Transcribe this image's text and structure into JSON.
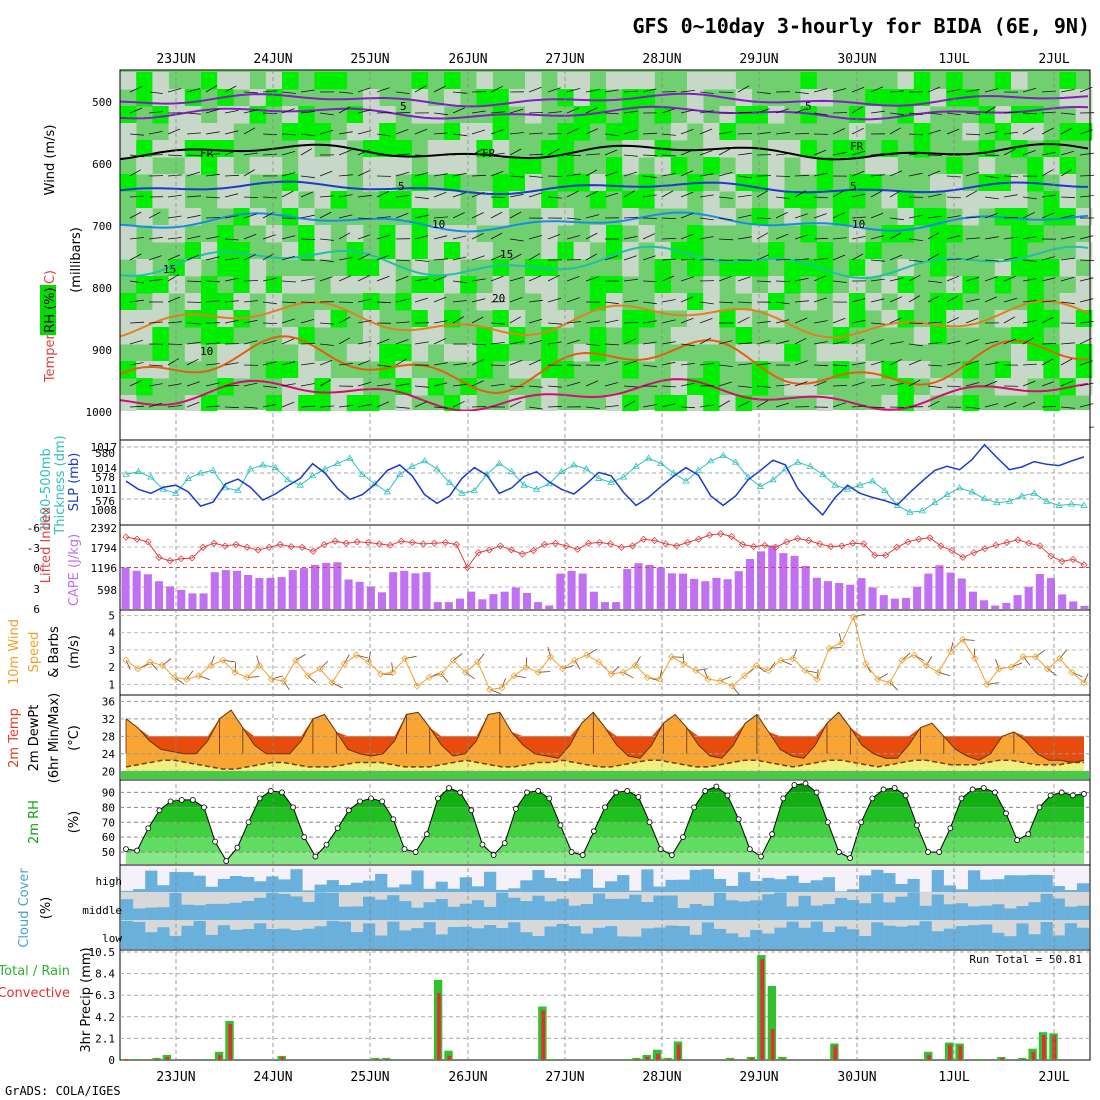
{
  "title": "GFS 0~10day 3-hourly for BIDA (6E, 9N)",
  "footer": "GrADS: COLA/IGES",
  "dates": [
    "23JUN",
    "24JUN",
    "25JUN",
    "26JUN",
    "27JUN",
    "28JUN",
    "29JUN",
    "30JUN",
    "1JUL",
    "2JUL"
  ],
  "colors": {
    "rh_light": "#c8d8c8",
    "rh_mid": "#70d070",
    "rh_bright": "#00ee00",
    "thickness": "#30c0c0",
    "slp": "#1a3cc8",
    "lifted": "#e04040",
    "cape": "#c070f0",
    "wind": "#f0a030",
    "temp_hot": "#e84c0c",
    "temp_warm": "#f9a534",
    "dew": "#f0f080",
    "rh2m": "#10b010",
    "cloud": "#6ab0dc",
    "cloud_bg": "#d8d8d8",
    "precip": "#30c030",
    "conv": "#e03030"
  },
  "panels": {
    "upper": {
      "y_label_rh": "RH (%)",
      "y_label_temp": "Temperature (°C)",
      "y_label_wind": "Wind (m/s)",
      "y_label_mb": "(millibars)",
      "levels": [
        "500",
        "600",
        "700",
        "800",
        "900",
        "1000"
      ],
      "contour_labels": [
        "5",
        "5",
        "FR",
        "FR",
        "FR",
        "5",
        "5",
        "10",
        "10",
        "15",
        "15",
        "20",
        "10"
      ]
    },
    "slp": {
      "label_a": "1000-500mb",
      "label_b": "Thickness (dm)",
      "label_c": "SLP (mb)",
      "left_ticks": [
        "580",
        "578",
        "576"
      ],
      "right_ticks": [
        "1017",
        "1014",
        "1011",
        "1008"
      ]
    },
    "cape": {
      "label_a": "Lifted Index",
      "label_b": "CAPE (J/kg)",
      "left_ticks": [
        "-3",
        "0",
        "3",
        "6",
        "-6"
      ],
      "right_ticks": [
        "2392",
        "1794",
        "1196",
        "598"
      ]
    },
    "wind": {
      "label_a": "10m Wind",
      "label_b": "Speed",
      "label_c": "& Barbs",
      "label_d": "(m/s)",
      "ticks": [
        "5",
        "4",
        "3",
        "2",
        "1"
      ]
    },
    "temp": {
      "label_a": "2m Temp",
      "label_b": "2m DewPt",
      "label_c": "(6hr Min/Max)",
      "label_d": "(°C)",
      "ticks": [
        "36",
        "32",
        "28",
        "24",
        "20"
      ]
    },
    "rh": {
      "label_a": "2m RH",
      "label_b": "(%)",
      "ticks": [
        "90",
        "80",
        "70",
        "60",
        "50"
      ]
    },
    "cloud": {
      "label_a": "Cloud Cover",
      "label_b": "(%)",
      "levels": [
        "high",
        "middle",
        "low"
      ]
    },
    "precip": {
      "label_a": "Total / Rain",
      "label_b": "Convective",
      "label_c": "3hr Precip (mm)",
      "ticks": [
        "10.5",
        "8.4",
        "6.3",
        "4.2",
        "2.1",
        "0"
      ],
      "run_total": "Run Total = 50.81"
    }
  },
  "chart_data": [
    {
      "type": "line",
      "title": "1000-500mb Thickness (dm) / SLP (mb)",
      "x_unit": "3-hourly steps from 22JUN 12Z",
      "series": [
        {
          "name": "1000-500mb Thickness (dm)",
          "y_axis": "left",
          "ylim": [
            575,
            581
          ],
          "values": [
            578.6,
            578.8,
            578.4,
            577.5,
            577.2,
            578.3,
            578.7,
            578.9,
            577.6,
            577.4,
            579.0,
            579.3,
            579.1,
            578.2,
            577.8,
            578.5,
            579.0,
            579.4,
            579.8,
            578.6,
            577.9,
            577.3,
            578.6,
            579.2,
            579.6,
            579.0,
            578.0,
            577.2,
            577.4,
            578.6,
            579.4,
            578.8,
            577.8,
            577.5,
            577.9,
            578.8,
            579.3,
            579.0,
            578.3,
            578.0,
            578.4,
            579.2,
            579.8,
            579.4,
            578.7,
            578.1,
            578.9,
            579.6,
            580.0,
            579.5,
            578.4,
            577.7,
            578.2,
            579.0,
            579.5,
            579.2,
            578.6,
            577.8,
            577.5,
            577.8,
            578.1,
            577.4,
            576.3,
            575.8,
            575.9,
            576.5,
            577.1,
            577.6,
            577.3,
            576.8,
            576.5,
            576.6,
            577.0,
            577.2,
            576.6,
            576.3,
            576.4,
            576.3
          ]
        },
        {
          "name": "SLP (mb)",
          "y_axis": "right",
          "ylim": [
            1007,
            1019
          ],
          "values": [
            1013.2,
            1012.0,
            1011.4,
            1012.3,
            1012.6,
            1011.6,
            1009.5,
            1010.1,
            1012.8,
            1013.5,
            1012.3,
            1010.4,
            1011.3,
            1012.5,
            1013.6,
            1015.8,
            1014.4,
            1012.1,
            1010.5,
            1011.2,
            1012.7,
            1014.8,
            1015.6,
            1014.0,
            1011.2,
            1009.9,
            1011.0,
            1013.6,
            1015.2,
            1014.1,
            1011.4,
            1012.2,
            1013.9,
            1014.6,
            1013.1,
            1012.0,
            1011.3,
            1012.8,
            1014.5,
            1014.0,
            1011.5,
            1009.6,
            1010.8,
            1012.4,
            1013.9,
            1015.2,
            1014.1,
            1011.0,
            1009.6,
            1011.0,
            1013.4,
            1014.8,
            1016.3,
            1015.6,
            1012.1,
            1010.0,
            1008.2,
            1010.8,
            1012.6,
            1011.4,
            1010.8,
            1010.3,
            1009.7,
            1011.5,
            1013.2,
            1014.8,
            1015.4,
            1014.9,
            1016.4,
            1018.6,
            1016.7,
            1014.9,
            1015.3,
            1016.1,
            1015.7,
            1015.5,
            1016.2,
            1016.8
          ]
        }
      ]
    },
    {
      "type": "bar",
      "title": "Lifted Index / CAPE (J/kg)",
      "series": [
        {
          "name": "CAPE (J/kg)",
          "ylim": [
            0,
            2392
          ],
          "values": [
            1200,
            1100,
            1000,
            800,
            650,
            550,
            450,
            450,
            1060,
            1120,
            1100,
            980,
            890,
            900,
            920,
            1120,
            1180,
            1270,
            1330,
            1350,
            850,
            780,
            650,
            480,
            1060,
            1100,
            1030,
            1060,
            200,
            200,
            300,
            500,
            280,
            430,
            500,
            620,
            460,
            200,
            100,
            1020,
            1100,
            1020,
            500,
            200,
            200,
            1150,
            1320,
            1270,
            1200,
            1030,
            1020,
            870,
            800,
            900,
            860,
            1090,
            1440,
            1660,
            1830,
            1610,
            1530,
            1240,
            900,
            800,
            750,
            700,
            890,
            620,
            400,
            300,
            320,
            640,
            1020,
            1260,
            1050,
            880,
            500,
            250,
            100,
            180,
            400,
            640,
            1010,
            890,
            420,
            220,
            90
          ]
        },
        {
          "name": "Lifted Index",
          "type": "line",
          "ylim": [
            6,
            -6
          ],
          "values": [
            -4.5,
            -4.2,
            -3.8,
            -1.5,
            -1.0,
            -1.3,
            -1.4,
            -3.0,
            -3.6,
            -3.2,
            -3.4,
            -3.0,
            -2.6,
            -3.0,
            -3.4,
            -3.1,
            -3.0,
            -2.4,
            -3.4,
            -3.9,
            -3.6,
            -3.8,
            -3.7,
            -3.5,
            -3.3,
            -3.9,
            -3.7,
            -3.5,
            -3.6,
            -3.7,
            -3.4,
            0.0,
            -2.2,
            -2.6,
            -3.2,
            -2.6,
            -2.0,
            -2.5,
            -3.4,
            -3.6,
            -3.2,
            -2.7,
            -3.6,
            -3.7,
            -3.5,
            -3.0,
            -3.2,
            -4.2,
            -4.0,
            -3.5,
            -3.2,
            -3.7,
            -4.2,
            -4.8,
            -5.0,
            -4.6,
            -3.4,
            -3.1,
            -3.3,
            -3.0,
            -3.8,
            -4.3,
            -4.0,
            -3.5,
            -3.1,
            -3.2,
            -3.6,
            -3.5,
            -1.8,
            -1.8,
            -3.0,
            -3.8,
            -4.2,
            -4.4,
            -3.2,
            -2.5,
            -1.5,
            -2.2,
            -2.8,
            -3.3,
            -3.7,
            -4.1,
            -3.6,
            -3.2,
            -1.7,
            -0.9,
            -1.2,
            -0.4
          ]
        }
      ]
    },
    {
      "type": "line",
      "title": "10m Wind Speed (m/s)",
      "ylim": [
        0.5,
        5.2
      ],
      "values": [
        2.4,
        1.9,
        2.3,
        2.1,
        1.4,
        1.3,
        1.5,
        2.1,
        2.4,
        1.7,
        1.4,
        2.1,
        1.3,
        1.2,
        2.4,
        1.5,
        1.9,
        1.1,
        2.2,
        2.7,
        2.3,
        1.6,
        1.7,
        2.5,
        0.9,
        1.4,
        1.6,
        2.4,
        1.7,
        2.3,
        0.7,
        0.8,
        1.5,
        2.0,
        1.7,
        2.6,
        1.9,
        2.4,
        2.7,
        2.3,
        1.6,
        1.7,
        2.1,
        1.4,
        1.3,
        2.6,
        2.2,
        1.8,
        1.3,
        1.2,
        0.9,
        1.5,
        2.1,
        1.8,
        2.4,
        2.5,
        1.8,
        1.3,
        3.1,
        3.4,
        4.9,
        2.2,
        1.3,
        1.1,
        2.4,
        2.7,
        2.1,
        1.7,
        2.9,
        3.6,
        2.5,
        1.0,
        1.9,
        2.0,
        2.6,
        2.6,
        1.9,
        2.5,
        1.7,
        1.1
      ]
    },
    {
      "type": "area",
      "title": "2m Temp / 2m DewPt (°C)",
      "ylim": [
        18,
        37
      ],
      "series": [
        {
          "name": "2m Temp",
          "values": [
            32,
            30,
            27,
            25,
            24.5,
            24,
            24,
            27,
            32,
            34,
            30,
            26,
            24,
            24,
            24,
            27,
            32,
            33,
            29,
            25,
            24,
            23.5,
            24,
            27,
            33,
            33.5,
            30,
            26,
            23.5,
            24,
            27,
            33,
            33.5,
            29,
            26,
            24,
            23.5,
            23,
            26,
            31,
            33.5,
            30,
            26,
            23.5,
            23,
            26,
            31,
            33,
            30,
            26,
            23.5,
            23,
            26,
            31,
            33,
            29,
            25,
            23.5,
            23,
            26,
            31,
            33.5,
            30,
            26,
            24,
            23,
            23,
            26,
            30,
            31,
            28,
            25,
            23.5,
            22.5,
            24,
            28,
            29,
            27,
            24,
            22.5,
            22.5,
            22,
            22.5
          ]
        },
        {
          "name": "2m DewPt",
          "values": [
            21,
            21.5,
            22,
            22.5,
            22.5,
            22,
            21.5,
            21,
            20.5,
            20.5,
            21,
            21.5,
            22,
            22,
            21.5,
            21,
            21,
            21,
            21.5,
            22,
            22,
            22,
            21.5,
            21,
            21,
            21,
            21.5,
            22,
            22.5,
            22,
            21.5,
            21,
            21,
            21.5,
            22,
            22,
            22.5,
            22,
            21.5,
            21,
            21,
            21.5,
            22,
            22.5,
            22.5,
            22,
            21.5,
            21,
            21,
            21.5,
            22,
            22.5,
            22.5,
            22,
            21.5,
            21,
            21.5,
            22,
            22.5,
            22.5,
            22,
            21.5,
            21,
            21.5,
            22,
            22.5,
            22.5,
            22,
            21.5,
            21.5,
            21.5,
            22,
            22.5,
            22.5,
            22,
            21.5,
            21.5,
            21.5,
            22,
            22
          ]
        }
      ]
    },
    {
      "type": "area",
      "title": "2m RH (%)",
      "ylim": [
        42,
        97
      ],
      "values": [
        52,
        51,
        66,
        78,
        84,
        85,
        85,
        80,
        57,
        44,
        53,
        70,
        86,
        91,
        90,
        80,
        60,
        47,
        55,
        66,
        78,
        84,
        86,
        84,
        72,
        52,
        50,
        62,
        86,
        93,
        90,
        78,
        55,
        48,
        56,
        79,
        90,
        91,
        86,
        68,
        50,
        48,
        64,
        80,
        90,
        91,
        87,
        70,
        52,
        48,
        60,
        80,
        91,
        94,
        88,
        72,
        52,
        47,
        62,
        86,
        95,
        96,
        90,
        70,
        50,
        46,
        70,
        86,
        92,
        93,
        88,
        68,
        50,
        50,
        66,
        86,
        92,
        93,
        90,
        76,
        58,
        62,
        80,
        88,
        90,
        88,
        89
      ]
    },
    {
      "type": "bar",
      "title": "3hr Precip (mm)",
      "ylim": [
        0,
        10.5
      ],
      "series": [
        {
          "name": "Total",
          "values": [
            0.1,
            0.1,
            0,
            0.2,
            0.5,
            0,
            0,
            0,
            0.1,
            0.8,
            3.8,
            0,
            0,
            0,
            0,
            0.4,
            0,
            0,
            0,
            0,
            0,
            0,
            0,
            0,
            0.2,
            0.2,
            0,
            0,
            0,
            0,
            7.8,
            0.9,
            0,
            0,
            0,
            0,
            0,
            0,
            0,
            0,
            5.2,
            0.1,
            0,
            0,
            0,
            0,
            0,
            0,
            0.1,
            0.2,
            0.5,
            1.0,
            0.2,
            1.8,
            0,
            0,
            0,
            0,
            0.2,
            0,
            0.3,
            10.2,
            7.2,
            0.3,
            0,
            0,
            0,
            0,
            1.6,
            0,
            0,
            0,
            0,
            0,
            0,
            0,
            0.1,
            0.8,
            0,
            1.7,
            1.6,
            0,
            0.1,
            0,
            0.3,
            0,
            0.2,
            1.1,
            2.7,
            2.6,
            0,
            0,
            0
          ]
        },
        {
          "name": "Convective",
          "values": [
            0.1,
            0,
            0,
            0.1,
            0.3,
            0,
            0,
            0,
            0,
            0.5,
            3.5,
            0,
            0,
            0,
            0,
            0.3,
            0,
            0,
            0,
            0,
            0,
            0,
            0,
            0,
            0.1,
            0.1,
            0,
            0,
            0,
            0,
            6.5,
            0.4,
            0,
            0,
            0,
            0,
            0,
            0,
            0,
            0,
            4.8,
            0,
            0,
            0,
            0,
            0,
            0,
            0,
            0,
            0.1,
            0.3,
            0.6,
            0.1,
            1.5,
            0,
            0,
            0,
            0,
            0.1,
            0,
            0.2,
            9.8,
            3.0,
            0.1,
            0,
            0,
            0,
            0,
            1.4,
            0,
            0,
            0,
            0,
            0,
            0,
            0,
            0,
            0.5,
            0,
            1.5,
            1.4,
            0,
            0,
            0,
            0.2,
            0,
            0.1,
            0.8,
            2.4,
            2.4,
            0,
            0,
            0
          ]
        }
      ]
    }
  ]
}
